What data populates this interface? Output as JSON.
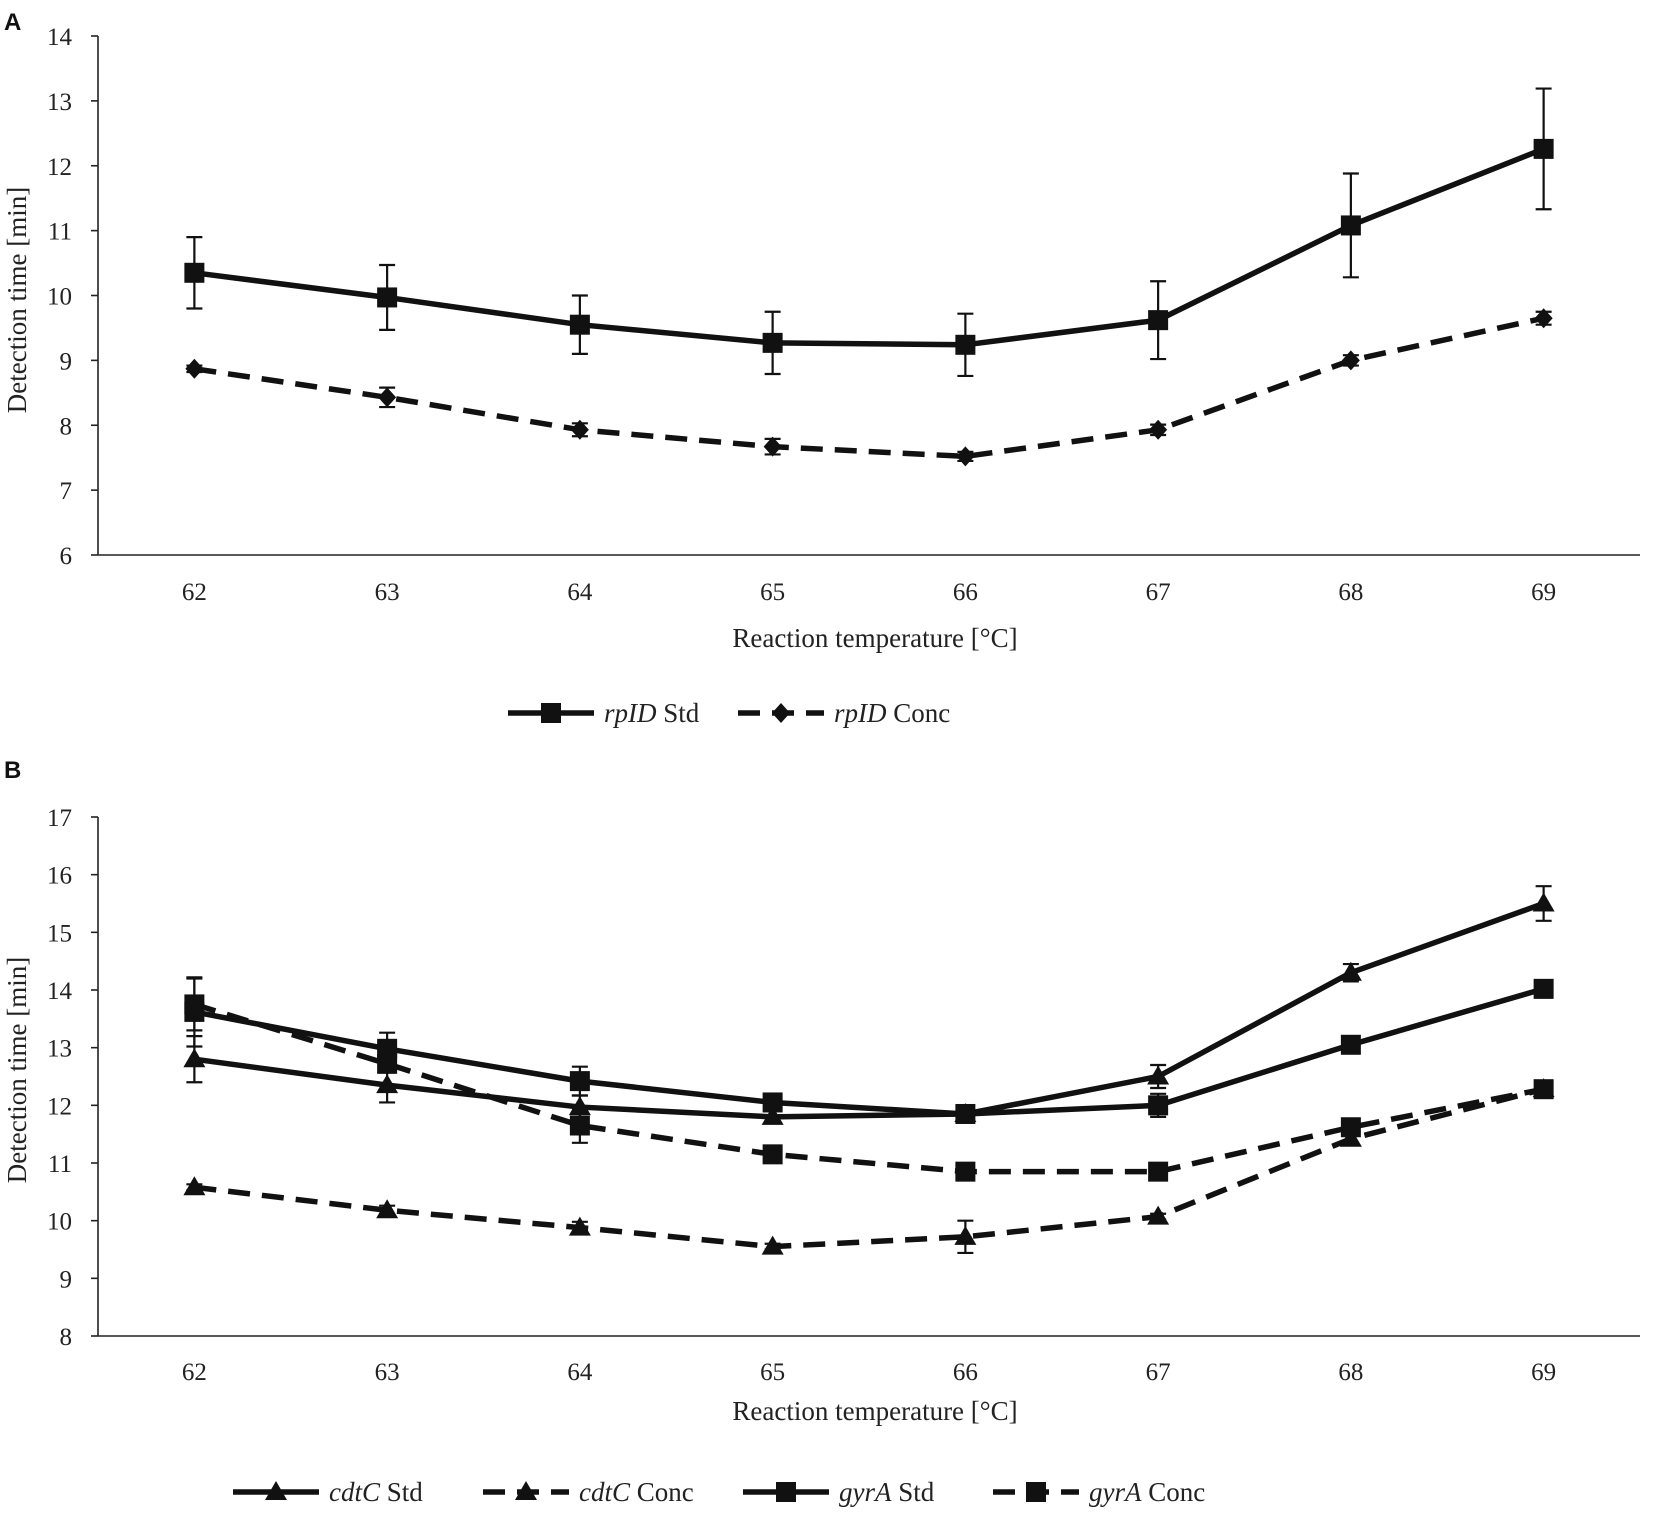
{
  "chart_data": [
    {
      "panel": "A",
      "type": "line",
      "xlabel": "Reaction temperature [°C]",
      "ylabel": "Detection time [min]",
      "ylim": [
        6,
        14
      ],
      "yticks": [
        6,
        7,
        8,
        9,
        10,
        11,
        12,
        13,
        14
      ],
      "categories": [
        "62",
        "63",
        "64",
        "65",
        "66",
        "67",
        "68",
        "69"
      ],
      "legend_position": "bottom",
      "series": [
        {
          "name_italic": "rpID",
          "name_suffix": " Std",
          "marker": "square",
          "dash": "solid",
          "values": [
            10.35,
            9.97,
            9.55,
            9.27,
            9.24,
            9.62,
            11.08,
            12.26
          ],
          "errors": [
            0.55,
            0.5,
            0.45,
            0.48,
            0.48,
            0.6,
            0.8,
            0.93
          ]
        },
        {
          "name_italic": "rpID",
          "name_suffix": " Conc",
          "marker": "diamond",
          "dash": "dashed",
          "values": [
            8.87,
            8.43,
            7.93,
            7.67,
            7.52,
            7.93,
            9.0,
            9.65
          ],
          "errors": [
            0.05,
            0.15,
            0.1,
            0.12,
            0.07,
            0.08,
            0.08,
            0.1
          ]
        }
      ]
    },
    {
      "panel": "B",
      "type": "line",
      "xlabel": "Reaction temperature [°C]",
      "ylabel": "Detection time [min]",
      "ylim": [
        8,
        17
      ],
      "yticks": [
        8,
        9,
        10,
        11,
        12,
        13,
        14,
        15,
        16,
        17
      ],
      "categories": [
        "62",
        "63",
        "64",
        "65",
        "66",
        "67",
        "68",
        "69"
      ],
      "legend_position": "bottom",
      "series": [
        {
          "name_italic": "cdtC",
          "name_suffix": " Std",
          "marker": "triangle",
          "dash": "solid",
          "values": [
            12.8,
            12.35,
            11.97,
            11.8,
            11.85,
            12.5,
            14.3,
            15.5
          ],
          "errors": [
            0.4,
            0.3,
            0.2,
            0.1,
            0.12,
            0.2,
            0.15,
            0.3
          ]
        },
        {
          "name_italic": "cdtC",
          "name_suffix": " Conc",
          "marker": "triangle",
          "dash": "dashed",
          "values": [
            10.58,
            10.18,
            9.88,
            9.55,
            9.72,
            10.07,
            11.42,
            12.28
          ],
          "errors": [
            0.05,
            0.08,
            0.1,
            0.05,
            0.28,
            0.05,
            0.08,
            0.08
          ]
        },
        {
          "name_italic": "gyrA",
          "name_suffix": " Std",
          "marker": "square",
          "dash": "solid",
          "values": [
            13.62,
            12.98,
            12.42,
            12.05,
            11.85,
            12.0,
            13.05,
            14.02
          ],
          "errors": [
            0.6,
            0.28,
            0.25,
            0.1,
            0.1,
            0.2,
            0.1,
            0.15
          ]
        },
        {
          "name_italic": "gyrA",
          "name_suffix": " Conc",
          "marker": "square",
          "dash": "dashed",
          "values": [
            13.75,
            12.72,
            11.65,
            11.15,
            10.85,
            10.85,
            11.62,
            12.28
          ],
          "errors": [
            0.45,
            0.15,
            0.3,
            0.1,
            0.05,
            0.05,
            0.1,
            0.08
          ]
        }
      ]
    }
  ]
}
